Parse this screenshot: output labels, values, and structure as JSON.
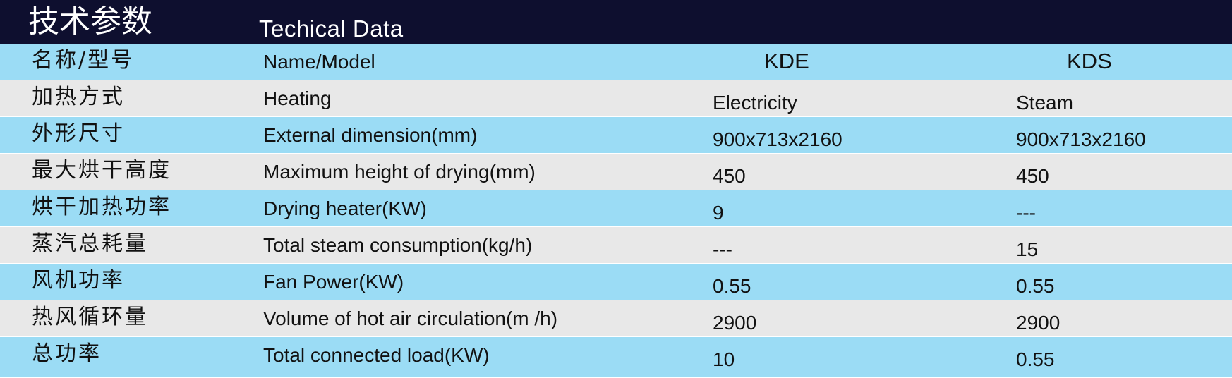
{
  "header": {
    "title_cn": "技术参数",
    "title_en": "Techical  Data"
  },
  "table": {
    "header_row": {
      "cn": "名称/型号",
      "en": "Name/Model",
      "col1": "KDE",
      "col2": "KDS"
    },
    "rows": [
      {
        "cn": "加热方式",
        "en": "Heating",
        "v1": "Electricity",
        "v2": "Steam"
      },
      {
        "cn": "外形尺寸",
        "en": "External  dimension(mm)",
        "v1": "900x713x2160",
        "v2": "900x713x2160"
      },
      {
        "cn": "最大烘干高度",
        "en": "Maximum height of drying(mm)",
        "v1": "450",
        "v2": "450"
      },
      {
        "cn": "烘干加热功率",
        "en": "Drying heater(KW)",
        "v1": "9",
        "v2": "---"
      },
      {
        "cn": "蒸汽总耗量",
        "en": "Total steam consumption(kg/h)",
        "v1": "---",
        "v2": "15"
      },
      {
        "cn": "风机功率",
        "en": "Fan Power(KW)",
        "v1": "0.55",
        "v2": "0.55"
      },
      {
        "cn": "热风循环量",
        "en": "Volume of hot air circulation(m /h)",
        "v1": "2900",
        "v2": "2900"
      },
      {
        "cn": "总功率",
        "en": "Total connected load(KW)",
        "v1": "10",
        "v2": "0.55"
      }
    ]
  },
  "colors": {
    "header_bg": "#0e0f2f",
    "row_blue": "#9bdcf5",
    "row_gray": "#e8e8e8"
  }
}
